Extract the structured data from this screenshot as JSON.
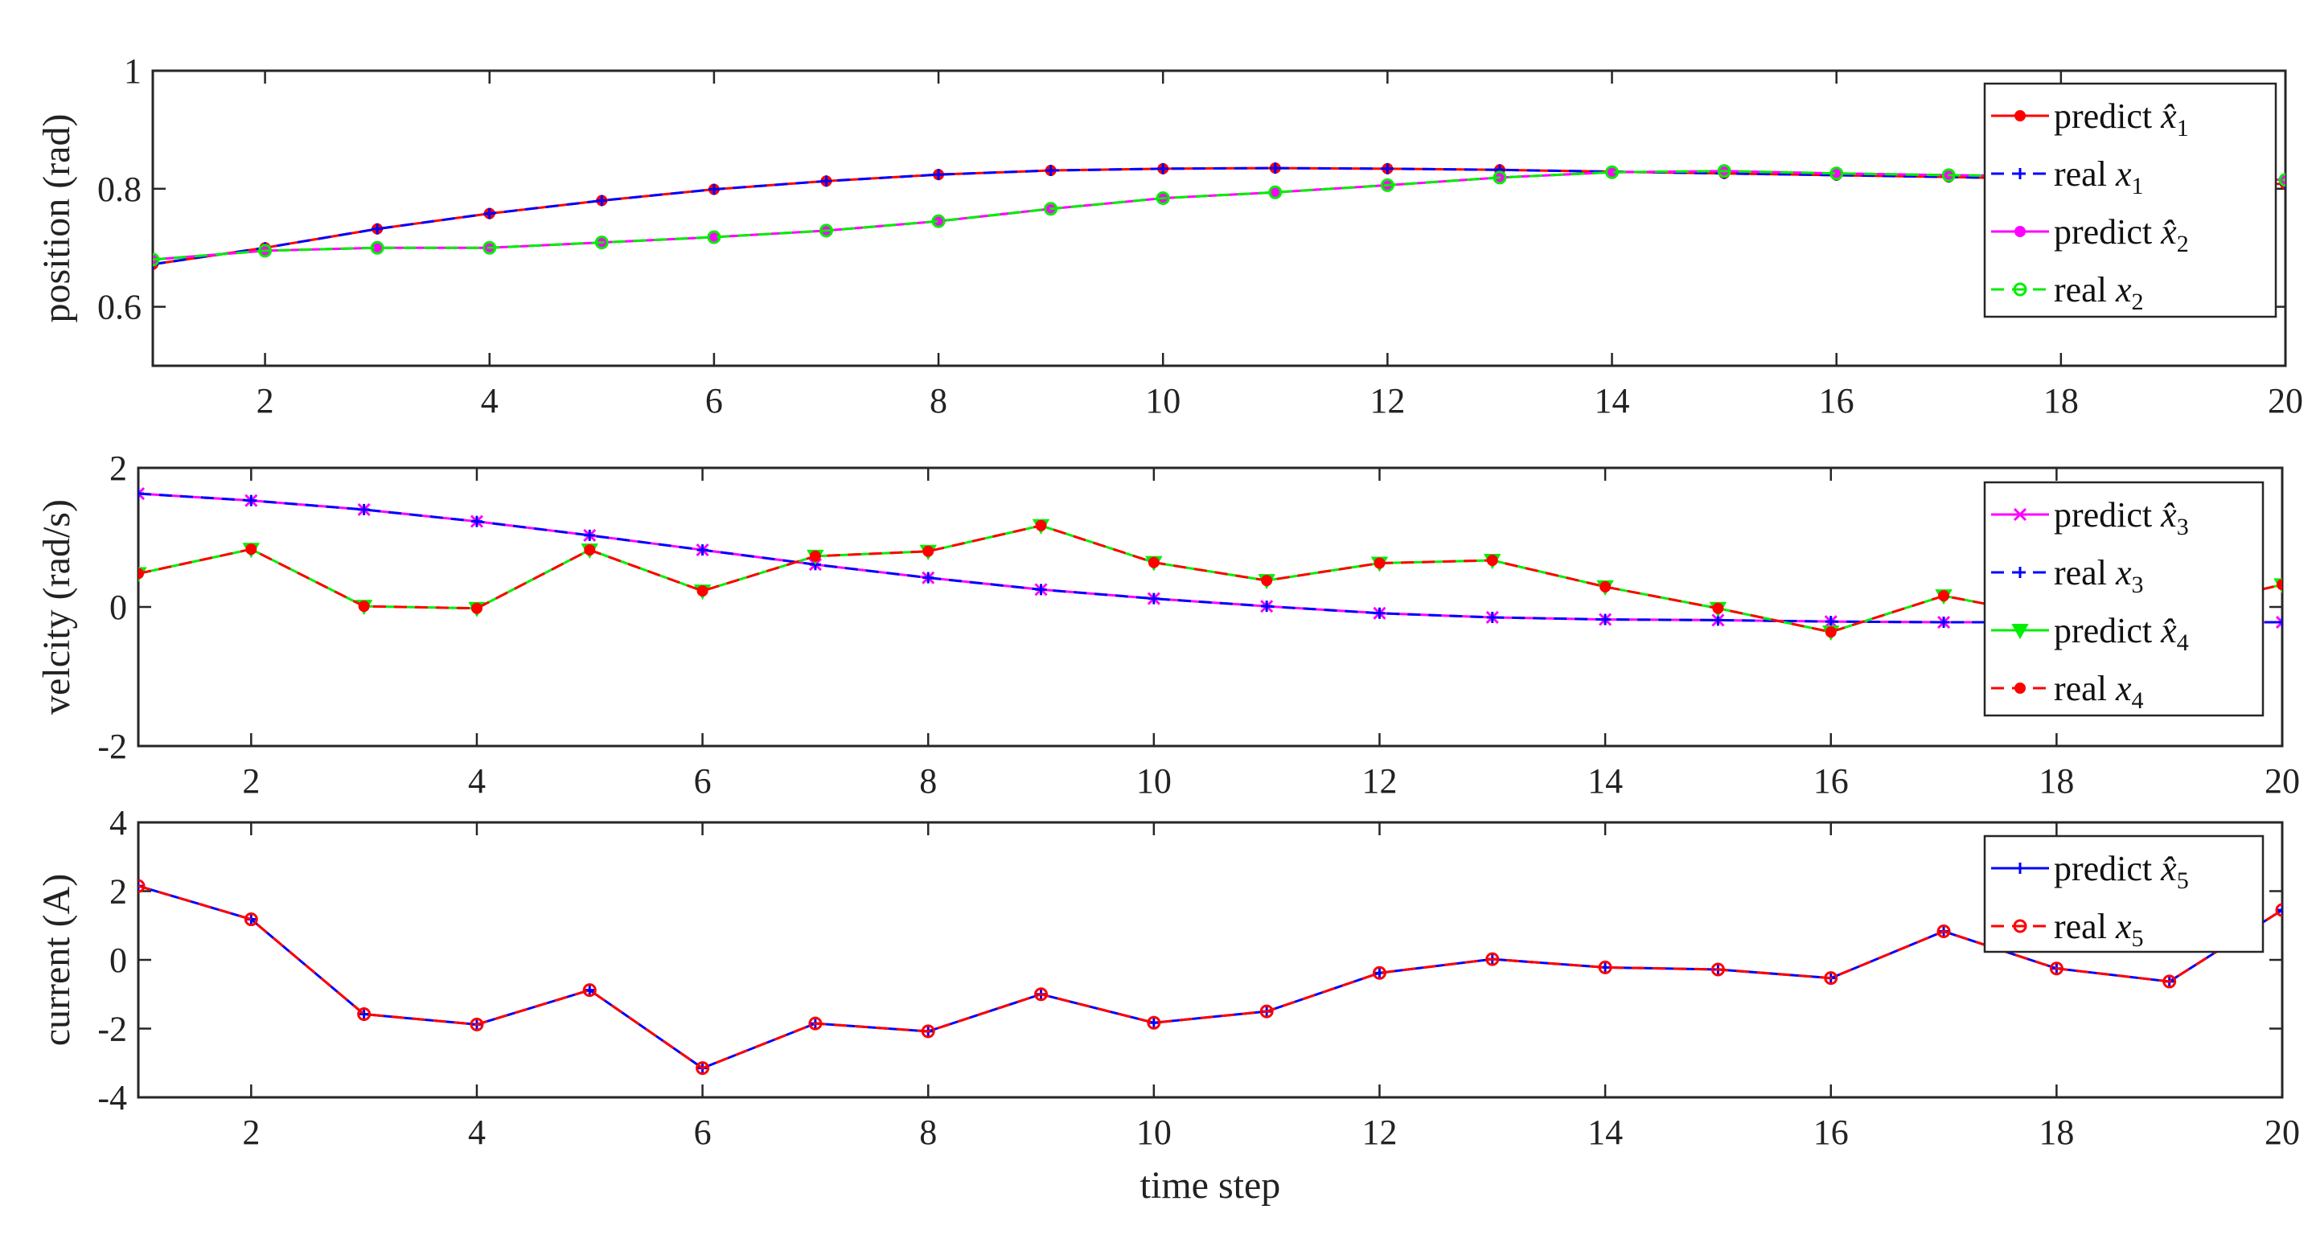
{
  "chart_data": [
    {
      "type": "line",
      "ylabel": "position (rad)",
      "xlabel": "",
      "xlim": [
        1,
        20
      ],
      "ylim": [
        0.5,
        1
      ],
      "xticks": [
        2,
        4,
        6,
        8,
        10,
        12,
        14,
        16,
        18,
        20
      ],
      "yticks": [
        0.6,
        0.8,
        1
      ],
      "ytick_labels": [
        "0.6",
        "0.8",
        "1"
      ],
      "legend_position": "top-right",
      "x": [
        1,
        2,
        3,
        4,
        5,
        6,
        7,
        8,
        9,
        10,
        11,
        12,
        13,
        14,
        15,
        16,
        17,
        18,
        19,
        20
      ],
      "series": [
        {
          "name": "predict",
          "sym": "x̂",
          "sub": "1",
          "color": "#ff0000",
          "dash": "solid",
          "marker": "dot",
          "values": [
            0.672,
            0.7,
            0.732,
            0.758,
            0.78,
            0.799,
            0.813,
            0.824,
            0.831,
            0.834,
            0.835,
            0.834,
            0.832,
            0.829,
            0.826,
            0.823,
            0.82,
            0.816,
            0.812,
            0.808
          ]
        },
        {
          "name": "real",
          "sym": "x",
          "sub": "1",
          "color": "#0000ff",
          "dash": "dashed",
          "marker": "plus",
          "values": [
            0.672,
            0.7,
            0.732,
            0.758,
            0.78,
            0.799,
            0.813,
            0.824,
            0.831,
            0.834,
            0.835,
            0.834,
            0.832,
            0.829,
            0.826,
            0.823,
            0.82,
            0.816,
            0.812,
            0.808
          ]
        },
        {
          "name": "predict",
          "sym": "x̂",
          "sub": "2",
          "color": "#ff00ff",
          "dash": "solid",
          "marker": "dot",
          "values": [
            0.68,
            0.695,
            0.7,
            0.7,
            0.709,
            0.718,
            0.729,
            0.745,
            0.766,
            0.784,
            0.794,
            0.806,
            0.819,
            0.828,
            0.83,
            0.826,
            0.823,
            0.821,
            0.819,
            0.815
          ]
        },
        {
          "name": "real",
          "sym": "x",
          "sub": "2",
          "color": "#00ee00",
          "dash": "dashed",
          "marker": "circle",
          "values": [
            0.68,
            0.695,
            0.7,
            0.7,
            0.709,
            0.718,
            0.729,
            0.745,
            0.766,
            0.784,
            0.794,
            0.806,
            0.819,
            0.828,
            0.83,
            0.826,
            0.823,
            0.821,
            0.819,
            0.815
          ]
        }
      ]
    },
    {
      "type": "line",
      "ylabel": "velcity (rad/s)",
      "xlabel": "",
      "xlim": [
        1,
        20
      ],
      "ylim": [
        -2,
        2
      ],
      "xticks": [
        2,
        4,
        6,
        8,
        10,
        12,
        14,
        16,
        18,
        20
      ],
      "yticks": [
        -2,
        0,
        2
      ],
      "ytick_labels": [
        "-2",
        "0",
        "2"
      ],
      "legend_position": "top-right",
      "x": [
        1,
        2,
        3,
        4,
        5,
        6,
        7,
        8,
        9,
        10,
        11,
        12,
        13,
        14,
        15,
        16,
        17,
        18,
        19,
        20
      ],
      "series": [
        {
          "name": "predict",
          "sym": "x̂",
          "sub": "3",
          "color": "#ff00ff",
          "dash": "solid",
          "marker": "x",
          "values": [
            1.63,
            1.53,
            1.4,
            1.23,
            1.03,
            0.82,
            0.61,
            0.42,
            0.25,
            0.12,
            0.01,
            -0.09,
            -0.15,
            -0.18,
            -0.19,
            -0.21,
            -0.22,
            -0.22,
            -0.22,
            -0.22
          ]
        },
        {
          "name": "real",
          "sym": "x",
          "sub": "3",
          "color": "#0000ff",
          "dash": "dashed",
          "marker": "plus",
          "values": [
            1.63,
            1.53,
            1.4,
            1.23,
            1.03,
            0.82,
            0.61,
            0.42,
            0.25,
            0.12,
            0.01,
            -0.09,
            -0.15,
            -0.18,
            -0.19,
            -0.21,
            -0.22,
            -0.22,
            -0.22,
            -0.22
          ]
        },
        {
          "name": "predict",
          "sym": "x̂",
          "sub": "4",
          "color": "#00ee00",
          "dash": "solid",
          "marker": "triangle",
          "values": [
            0.48,
            0.83,
            0.01,
            -0.02,
            0.82,
            0.23,
            0.73,
            0.8,
            1.17,
            0.64,
            0.38,
            0.63,
            0.67,
            0.29,
            -0.02,
            -0.36,
            0.16,
            -0.15,
            -0.05,
            0.32
          ]
        },
        {
          "name": "real",
          "sym": "x",
          "sub": "4",
          "color": "#ff0000",
          "dash": "dashed",
          "marker": "dot",
          "values": [
            0.48,
            0.83,
            0.01,
            -0.02,
            0.82,
            0.23,
            0.73,
            0.8,
            1.17,
            0.64,
            0.38,
            0.63,
            0.67,
            0.29,
            -0.02,
            -0.36,
            0.16,
            -0.15,
            -0.05,
            0.32
          ]
        }
      ]
    },
    {
      "type": "line",
      "ylabel": "current (A)",
      "xlabel": "time step",
      "xlim": [
        1,
        20
      ],
      "ylim": [
        -4,
        4
      ],
      "xticks": [
        2,
        4,
        6,
        8,
        10,
        12,
        14,
        16,
        18,
        20
      ],
      "yticks": [
        -4,
        -2,
        0,
        2,
        4
      ],
      "ytick_labels": [
        "-4",
        "-2",
        "0",
        "2",
        "4"
      ],
      "legend_position": "top-right",
      "x": [
        1,
        2,
        3,
        4,
        5,
        6,
        7,
        8,
        9,
        10,
        11,
        12,
        13,
        14,
        15,
        16,
        17,
        18,
        19,
        20
      ],
      "series": [
        {
          "name": "predict",
          "sym": "x̂",
          "sub": "5",
          "color": "#0000ff",
          "dash": "solid",
          "marker": "plus",
          "values": [
            2.15,
            1.18,
            -1.58,
            -1.88,
            -0.88,
            -3.15,
            -1.85,
            -2.08,
            -1.0,
            -1.83,
            -1.5,
            -0.38,
            0.02,
            -0.22,
            -0.28,
            -0.53,
            0.83,
            -0.25,
            -0.63,
            1.45
          ]
        },
        {
          "name": "real",
          "sym": "x",
          "sub": "5",
          "color": "#ff0000",
          "dash": "dashed",
          "marker": "circle",
          "values": [
            2.15,
            1.18,
            -1.58,
            -1.88,
            -0.88,
            -3.15,
            -1.85,
            -2.08,
            -1.0,
            -1.83,
            -1.5,
            -0.38,
            0.02,
            -0.22,
            -0.28,
            -0.53,
            0.83,
            -0.25,
            -0.63,
            1.45
          ]
        }
      ]
    }
  ]
}
